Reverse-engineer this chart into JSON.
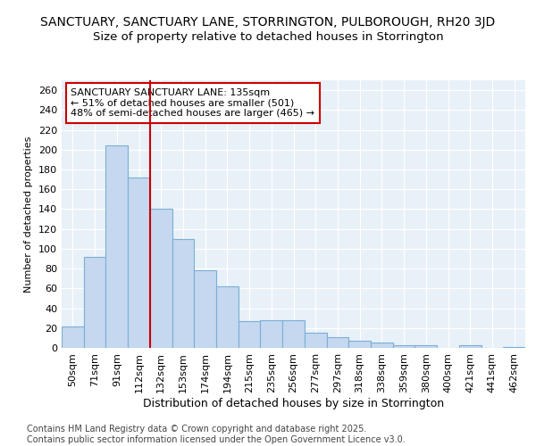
{
  "title1": "SANCTUARY, SANCTUARY LANE, STORRINGTON, PULBOROUGH, RH20 3JD",
  "title2": "Size of property relative to detached houses in Storrington",
  "xlabel": "Distribution of detached houses by size in Storrington",
  "ylabel": "Number of detached properties",
  "categories": [
    "50sqm",
    "71sqm",
    "91sqm",
    "112sqm",
    "132sqm",
    "153sqm",
    "174sqm",
    "194sqm",
    "215sqm",
    "235sqm",
    "256sqm",
    "277sqm",
    "297sqm",
    "318sqm",
    "338sqm",
    "359sqm",
    "380sqm",
    "400sqm",
    "421sqm",
    "441sqm",
    "462sqm"
  ],
  "values": [
    22,
    92,
    204,
    172,
    140,
    110,
    78,
    62,
    27,
    28,
    28,
    15,
    11,
    7,
    5,
    3,
    3,
    0,
    3,
    0,
    1
  ],
  "bar_color": "#c5d8f0",
  "bar_edge_color": "#7aafd4",
  "vline_x": 3.5,
  "vline_color": "#cc0000",
  "annotation_text": "SANCTUARY SANCTUARY LANE: 135sqm\n← 51% of detached houses are smaller (501)\n48% of semi-detached houses are larger (465) →",
  "background_color": "#ffffff",
  "plot_background": "#e8f0f8",
  "footer": "Contains HM Land Registry data © Crown copyright and database right 2025.\nContains public sector information licensed under the Open Government Licence v3.0.",
  "ylim": [
    0,
    270
  ],
  "yticks": [
    0,
    20,
    40,
    60,
    80,
    100,
    120,
    140,
    160,
    180,
    200,
    220,
    240,
    260
  ],
  "title1_fontsize": 10,
  "title2_fontsize": 9.5,
  "xlabel_fontsize": 9,
  "ylabel_fontsize": 8,
  "tick_fontsize": 8,
  "annotation_fontsize": 8,
  "footer_fontsize": 7
}
